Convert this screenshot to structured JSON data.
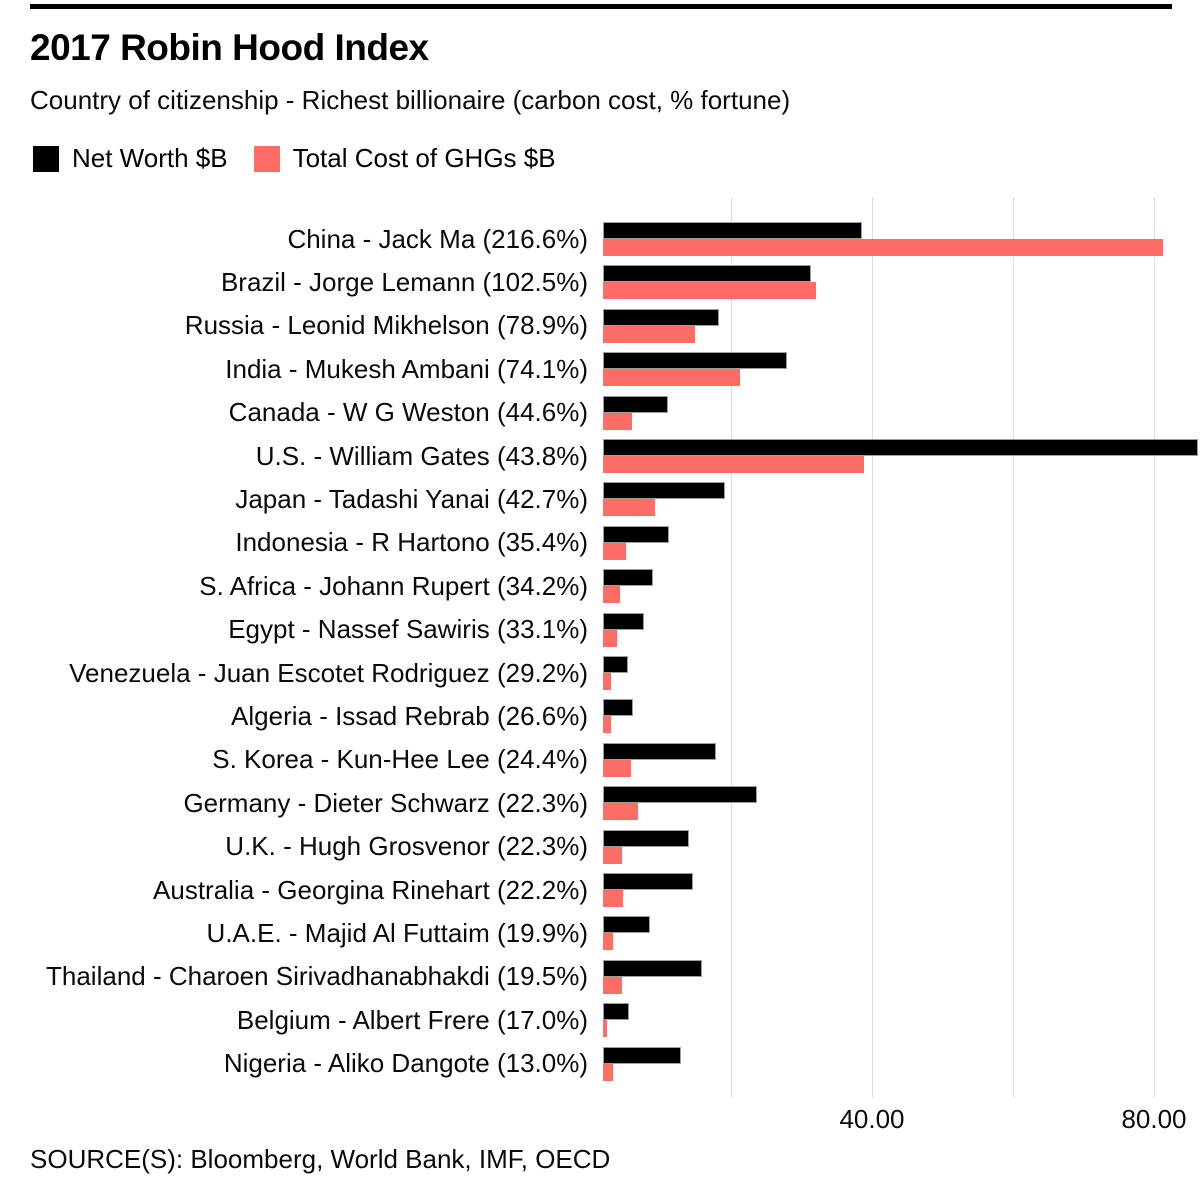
{
  "header": {
    "title": "2017 Robin Hood Index",
    "subtitle": "Country of citizenship - Richest billionaire (carbon cost, % fortune)"
  },
  "legend": [
    {
      "label": "Net Worth $B",
      "color": "#000000"
    },
    {
      "label": "Total Cost of GHGs $B",
      "color": "#FC6D66"
    }
  ],
  "footer": {
    "source": "SOURCE(S): Bloomberg, World Bank, IMF, OECD"
  },
  "chart_data": {
    "type": "bar",
    "orientation": "horizontal",
    "title": "2017 Robin Hood Index",
    "subtitle": "Country of citizenship - Richest billionaire (carbon cost, % fortune)",
    "legend_position": "top",
    "grid": true,
    "grid_color": "#dddddd",
    "xlim": [
      0,
      86.5
    ],
    "x_ticks": [
      {
        "value": 40,
        "label": "40.00"
      },
      {
        "value": 80,
        "label": "80.00"
      }
    ],
    "gridline_values": [
      20,
      40,
      60,
      80
    ],
    "categories": [
      "China - Jack Ma (216.6%)",
      "Brazil - Jorge Lemann (102.5%)",
      "Russia - Leonid Mikhelson (78.9%)",
      "India - Mukesh Ambani (74.1%)",
      "Canada - W G Weston (44.6%)",
      "U.S. - William Gates (43.8%)",
      "Japan - Tadashi Yanai (42.7%)",
      "Indonesia - R Hartono (35.4%)",
      "S. Africa - Johann Rupert (34.2%)",
      "Egypt - Nassef Sawiris (33.1%)",
      "Venezuela - Juan Escotet Rodriguez (29.2%)",
      "Algeria - Issad Rebrab (26.6%)",
      "S. Korea - Kun-Hee Lee (24.4%)",
      "Germany - Dieter Schwarz (22.3%)",
      "U.K. - Hugh Grosvenor (22.3%)",
      "Australia - Georgina Rinehart (22.2%)",
      "U.A.E. - Majid Al Futtaim (19.9%)",
      "Thailand - Charoen Sirivadhanabhakdi (19.5%)",
      "Belgium - Albert Frere (17.0%)",
      "Nigeria - Aliko Dangote (13.0%)"
    ],
    "robin_hood_index_pct": [
      216.6,
      102.5,
      78.9,
      74.1,
      44.6,
      43.8,
      42.7,
      35.4,
      34.2,
      33.1,
      29.2,
      26.6,
      24.4,
      22.3,
      22.3,
      22.2,
      19.9,
      19.5,
      17.0,
      13.0
    ],
    "series": [
      {
        "name": "Net Worth $B",
        "color": "#000000",
        "values": [
          37.5,
          30.1,
          16.8,
          26.7,
          9.4,
          86.2,
          17.7,
          9.6,
          7.2,
          5.9,
          3.6,
          4.3,
          16.4,
          22.3,
          12.5,
          13.0,
          6.8,
          14.3,
          3.8,
          11.3
        ]
      },
      {
        "name": "Total Cost of GHGs $B",
        "color": "#FC6D66",
        "values": [
          81.2,
          30.9,
          13.3,
          19.8,
          4.2,
          37.8,
          7.6,
          3.4,
          2.5,
          2.0,
          1.1,
          1.1,
          4.0,
          5.0,
          2.8,
          2.9,
          1.4,
          2.8,
          0.6,
          1.5
        ]
      }
    ]
  }
}
